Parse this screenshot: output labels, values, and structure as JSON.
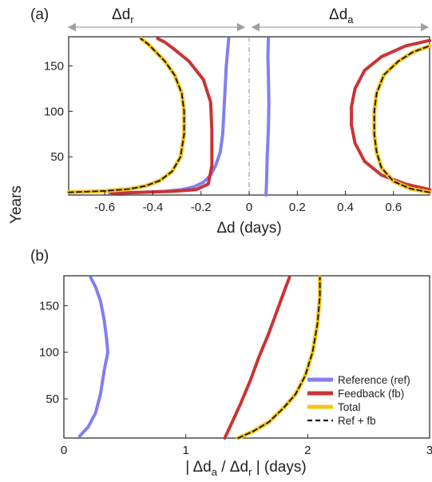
{
  "colors": {
    "reference": "#8080f0",
    "feedback": "#cc3333",
    "total": "#f5c518",
    "ref_fb": "#111111",
    "axis": "#222222",
    "arrow": "#a0a0a0",
    "center_line": "#888888"
  },
  "chart_data": [
    {
      "panel_label": "(a)",
      "type": "line",
      "xlabel": "Δd (days)",
      "ylabel": "Years",
      "xlim": [
        -0.75,
        0.75
      ],
      "ylim": [
        8,
        182
      ],
      "xticks": [
        -0.6,
        -0.4,
        -0.2,
        0,
        0.2,
        0.4,
        0.6
      ],
      "xtick_labels": [
        "-0.6",
        "-0.4",
        "-0.2",
        "0",
        "0.2",
        "0.4",
        "0.6"
      ],
      "yticks": [
        50,
        100,
        150
      ],
      "ytick_labels": [
        "50",
        "100",
        "150"
      ],
      "header_left": {
        "main": "Δd",
        "sub": "r"
      },
      "header_right": {
        "main": "Δd",
        "sub": "a"
      },
      "series": [
        {
          "key": "reference",
          "points": [
            [
              -0.58,
              10
            ],
            [
              -0.45,
              11
            ],
            [
              -0.35,
              12
            ],
            [
              -0.28,
              14
            ],
            [
              -0.23,
              17
            ],
            [
              -0.19,
              22
            ],
            [
              -0.16,
              30
            ],
            [
              -0.14,
              40
            ],
            [
              -0.12,
              55
            ],
            [
              -0.11,
              75
            ],
            [
              -0.105,
              100
            ],
            [
              -0.1,
              125
            ],
            [
              -0.095,
              150
            ],
            [
              -0.09,
              165
            ],
            [
              -0.085,
              180
            ]
          ]
        },
        {
          "key": "feedback",
          "points": [
            [
              -0.57,
              10
            ],
            [
              -0.45,
              11
            ],
            [
              -0.32,
              12
            ],
            [
              -0.22,
              14
            ],
            [
              -0.17,
              20
            ],
            [
              -0.155,
              40
            ],
            [
              -0.155,
              80
            ],
            [
              -0.16,
              110
            ],
            [
              -0.19,
              135
            ],
            [
              -0.25,
              155
            ],
            [
              -0.31,
              168
            ],
            [
              -0.35,
              176
            ],
            [
              -0.38,
              180
            ]
          ]
        },
        {
          "key": "total",
          "points": [
            [
              -0.75,
              11
            ],
            [
              -0.6,
              12.5
            ],
            [
              -0.5,
              14.5
            ],
            [
              -0.43,
              18
            ],
            [
              -0.37,
              24
            ],
            [
              -0.32,
              34
            ],
            [
              -0.285,
              50
            ],
            [
              -0.27,
              75
            ],
            [
              -0.27,
              100
            ],
            [
              -0.28,
              120
            ],
            [
              -0.31,
              140
            ],
            [
              -0.35,
              155
            ],
            [
              -0.39,
              166
            ],
            [
              -0.42,
              174
            ],
            [
              -0.45,
              180
            ]
          ]
        },
        {
          "key": "ref_fb",
          "points": [
            [
              -0.75,
              11
            ],
            [
              -0.6,
              12.5
            ],
            [
              -0.5,
              14.5
            ],
            [
              -0.43,
              18
            ],
            [
              -0.37,
              24
            ],
            [
              -0.32,
              34
            ],
            [
              -0.285,
              50
            ],
            [
              -0.27,
              75
            ],
            [
              -0.27,
              100
            ],
            [
              -0.28,
              120
            ],
            [
              -0.31,
              140
            ],
            [
              -0.35,
              155
            ],
            [
              -0.39,
              166
            ],
            [
              -0.42,
              174
            ],
            [
              -0.45,
              180
            ]
          ]
        },
        {
          "key": "reference",
          "points": [
            [
              0.07,
              8
            ],
            [
              0.072,
              20
            ],
            [
              0.075,
              50
            ],
            [
              0.08,
              80
            ],
            [
              0.082,
              110
            ],
            [
              0.08,
              140
            ],
            [
              0.078,
              160
            ],
            [
              0.08,
              180
            ]
          ]
        },
        {
          "key": "feedback",
          "points": [
            [
              0.75,
              14
            ],
            [
              0.65,
              20
            ],
            [
              0.55,
              30
            ],
            [
              0.48,
              45
            ],
            [
              0.44,
              65
            ],
            [
              0.425,
              85
            ],
            [
              0.425,
              105
            ],
            [
              0.44,
              125
            ],
            [
              0.48,
              145
            ],
            [
              0.55,
              160
            ],
            [
              0.65,
              172
            ],
            [
              0.75,
              178
            ]
          ]
        },
        {
          "key": "total",
          "points": [
            [
              0.75,
              11
            ],
            [
              0.67,
              15
            ],
            [
              0.6,
              23
            ],
            [
              0.55,
              38
            ],
            [
              0.53,
              55
            ],
            [
              0.52,
              75
            ],
            [
              0.52,
              100
            ],
            [
              0.53,
              120
            ],
            [
              0.56,
              140
            ],
            [
              0.62,
              155
            ],
            [
              0.68,
              165
            ],
            [
              0.75,
              172
            ]
          ]
        },
        {
          "key": "ref_fb",
          "points": [
            [
              0.75,
              11
            ],
            [
              0.67,
              15
            ],
            [
              0.6,
              23
            ],
            [
              0.55,
              38
            ],
            [
              0.53,
              55
            ],
            [
              0.52,
              75
            ],
            [
              0.52,
              100
            ],
            [
              0.53,
              120
            ],
            [
              0.56,
              140
            ],
            [
              0.62,
              155
            ],
            [
              0.68,
              165
            ],
            [
              0.75,
              172
            ]
          ]
        }
      ]
    },
    {
      "panel_label": "(b)",
      "type": "line",
      "xlabel": "| Δd_a / Δd_r | (days)",
      "xlabel_parts": {
        "open": "| Δd",
        "sub1": "a",
        "mid": " / Δd",
        "sub2": "r",
        "close": " | (days)"
      },
      "ylabel": "",
      "xlim": [
        0,
        3
      ],
      "ylim": [
        8,
        182
      ],
      "xticks": [
        0,
        1,
        2,
        3
      ],
      "xtick_labels": [
        "0",
        "1",
        "2",
        "3"
      ],
      "yticks": [
        50,
        100,
        150
      ],
      "ytick_labels": [
        "50",
        "100",
        "150"
      ],
      "series": [
        {
          "key": "reference",
          "name": "Reference (ref)",
          "points": [
            [
              0.13,
              10
            ],
            [
              0.2,
              20
            ],
            [
              0.26,
              35
            ],
            [
              0.3,
              55
            ],
            [
              0.33,
              80
            ],
            [
              0.36,
              100
            ],
            [
              0.35,
              115
            ],
            [
              0.33,
              135
            ],
            [
              0.3,
              155
            ],
            [
              0.26,
              170
            ],
            [
              0.22,
              180
            ]
          ]
        },
        {
          "key": "feedback",
          "name": "Feedback (fb)",
          "points": [
            [
              1.32,
              8
            ],
            [
              1.38,
              25
            ],
            [
              1.45,
              45
            ],
            [
              1.53,
              70
            ],
            [
              1.6,
              95
            ],
            [
              1.68,
              120
            ],
            [
              1.75,
              145
            ],
            [
              1.82,
              170
            ],
            [
              1.85,
              180
            ]
          ]
        },
        {
          "key": "total",
          "name": "Total",
          "points": [
            [
              1.43,
              8
            ],
            [
              1.55,
              15
            ],
            [
              1.68,
              25
            ],
            [
              1.8,
              40
            ],
            [
              1.9,
              55
            ],
            [
              1.98,
              75
            ],
            [
              2.04,
              100
            ],
            [
              2.08,
              130
            ],
            [
              2.1,
              160
            ],
            [
              2.1,
              180
            ]
          ]
        },
        {
          "key": "ref_fb",
          "name": "Ref + fb",
          "points": [
            [
              1.43,
              8
            ],
            [
              1.55,
              15
            ],
            [
              1.68,
              25
            ],
            [
              1.8,
              40
            ],
            [
              1.9,
              55
            ],
            [
              1.98,
              75
            ],
            [
              2.04,
              100
            ],
            [
              2.08,
              130
            ],
            [
              2.1,
              160
            ],
            [
              2.1,
              180
            ]
          ]
        }
      ],
      "legend": {
        "position": "bottom-right",
        "entries": [
          {
            "key": "reference",
            "label": "Reference (ref)"
          },
          {
            "key": "feedback",
            "label": "Feedback (fb)"
          },
          {
            "key": "total",
            "label": "Total"
          },
          {
            "key": "ref_fb",
            "label": "Ref + fb"
          }
        ]
      }
    }
  ]
}
